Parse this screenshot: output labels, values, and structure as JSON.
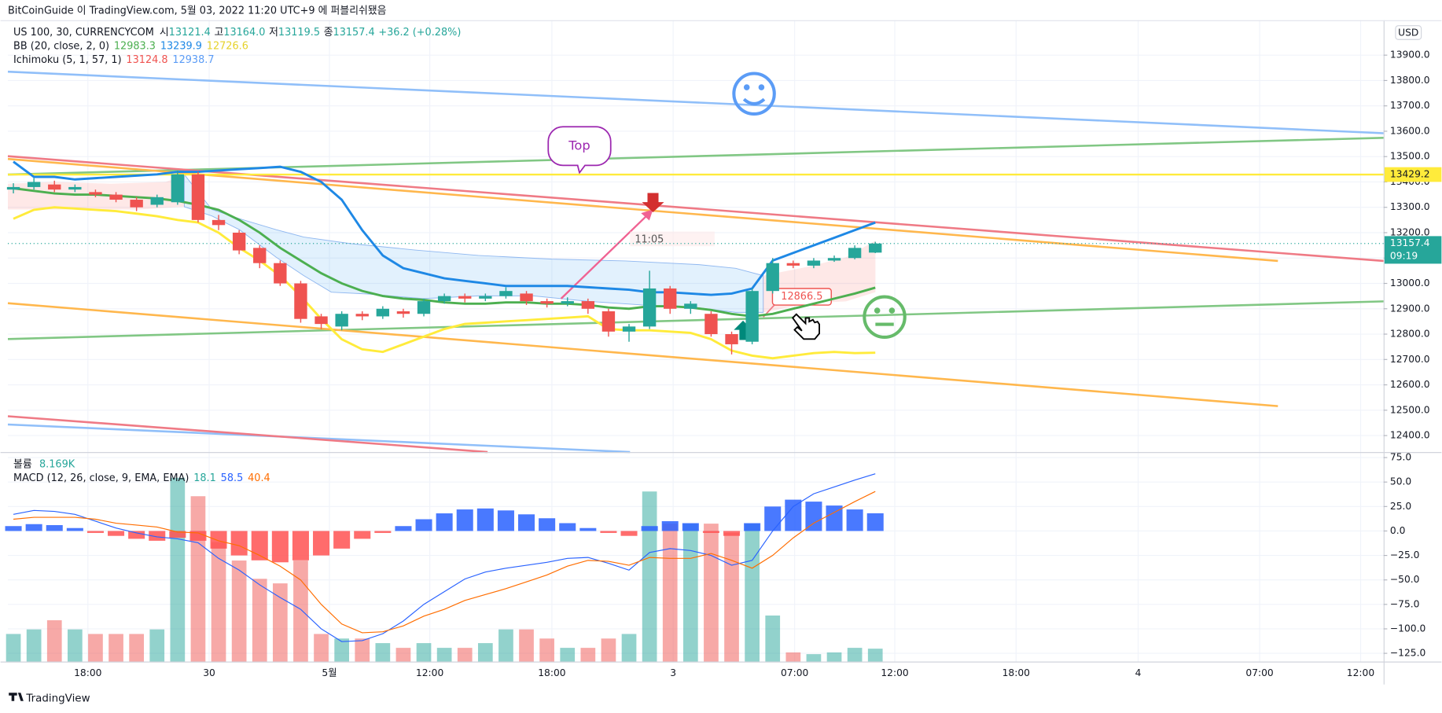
{
  "header": {
    "publisher": "BitCoinGuide 이 TradingView.com, 5월 03, 2022 11:20 UTC+9 에 퍼블리쉬됐음",
    "brand": "TradingView",
    "currency": "USD"
  },
  "chart_data": [
    {
      "type": "candlestick",
      "symbol": "US 100, 30, CURRENCYCOM",
      "ohlc_legend": [
        {
          "label": "시",
          "value": "13121.4"
        },
        {
          "label": "고",
          "value": "13164.0"
        },
        {
          "label": "저",
          "value": "13119.5"
        },
        {
          "label": "종",
          "value": "13157.4"
        }
      ],
      "change": "+36.2 (+0.28%)",
      "up_color": "#26a69a",
      "down_color": "#ef5350",
      "open": [
        13370,
        13380,
        13390,
        13370,
        13360,
        13350,
        13330,
        13310,
        13320,
        13430,
        13250,
        13200,
        13140,
        13080,
        13000,
        12870,
        12830,
        12880,
        12870,
        12890,
        12880,
        12930,
        12950,
        12940,
        12950,
        12960,
        12930,
        12920,
        12930,
        12890,
        12810,
        12830,
        12980,
        12900,
        12880,
        12800,
        12770,
        12970,
        13080,
        13070,
        13090,
        13100,
        13121.4
      ],
      "high": [
        13395,
        13415,
        13405,
        13390,
        13370,
        13360,
        13340,
        13350,
        13445,
        13440,
        13270,
        13210,
        13150,
        13090,
        13010,
        12880,
        12890,
        12890,
        12910,
        12900,
        12940,
        12960,
        12960,
        12960,
        12985,
        12970,
        12940,
        12945,
        12940,
        12900,
        12840,
        13050,
        12990,
        12930,
        12890,
        12810,
        12980,
        13100,
        13090,
        13100,
        13110,
        13150,
        13164
      ],
      "low": [
        13355,
        13370,
        13360,
        13360,
        13340,
        13320,
        13285,
        13300,
        13310,
        13240,
        13210,
        13115,
        13060,
        12990,
        12845,
        12820,
        12815,
        12855,
        12860,
        12865,
        12870,
        12920,
        12925,
        12930,
        12940,
        12915,
        12905,
        12910,
        12880,
        12790,
        12770,
        12820,
        12880,
        12880,
        12790,
        12720,
        12760,
        12960,
        13060,
        13060,
        13085,
        13095,
        13119.5
      ],
      "close": [
        13380,
        13400,
        13370,
        13380,
        13350,
        13330,
        13300,
        13340,
        13430,
        13250,
        13230,
        13130,
        13080,
        13000,
        12860,
        12840,
        12880,
        12870,
        12900,
        12880,
        12930,
        12950,
        12940,
        12950,
        12970,
        12930,
        12920,
        12930,
        12900,
        12810,
        12830,
        12980,
        12900,
        12920,
        12800,
        12760,
        12970,
        13080,
        13070,
        13090,
        13100,
        13140,
        13157.4
      ],
      "bollinger": {
        "title": "BB (20, close, 2, 0)",
        "series": [
          {
            "color": "#4caf50",
            "values": [
              13375,
              13365,
              13355,
              13350,
              13350,
              13345,
              13340,
              13335,
              13325,
              13310,
              13290,
              13250,
              13200,
              13140,
              13090,
              13040,
              13000,
              12970,
              12950,
              12940,
              12935,
              12925,
              12920,
              12920,
              12925,
              12925,
              12920,
              12920,
              12915,
              12905,
              12900,
              12910,
              12910,
              12905,
              12895,
              12880,
              12870,
              12880,
              12900,
              12920,
              12940,
              12960,
              12983.3
            ]
          },
          {
            "color": "#1e88e5",
            "values": [
              13480,
              13420,
              13420,
              13410,
              13415,
              13420,
              13425,
              13430,
              13440,
              13440,
              13445,
              13450,
              13455,
              13460,
              13440,
              13400,
              13330,
              13210,
              13110,
              13060,
              13040,
              13020,
              13010,
              13000,
              12990,
              12990,
              12990,
              12990,
              12985,
              12980,
              12975,
              12965,
              12965,
              12960,
              12955,
              12960,
              12980,
              13090,
              13120,
              13150,
              13180,
              13210,
              13239.9
            ]
          },
          {
            "color": "#ffeb3b",
            "values": [
              13255,
              13290,
              13300,
              13295,
              13290,
              13285,
              13275,
              13265,
              13250,
              13240,
              13200,
              13140,
              13090,
              13030,
              12950,
              12860,
              12780,
              12740,
              12730,
              12760,
              12790,
              12820,
              12840,
              12845,
              12850,
              12855,
              12860,
              12865,
              12870,
              12820,
              12815,
              12815,
              12810,
              12805,
              12780,
              12735,
              12715,
              12705,
              12715,
              12725,
              12730,
              12725,
              12726.6
            ]
          }
        ]
      },
      "ichimoku": {
        "title": "Ichimoku (5, 1, 57, 1)",
        "values": [
          13124.8,
          12938.7
        ],
        "colors": [
          "#ef5350",
          "#5b9cf6"
        ]
      },
      "price_lines": [
        {
          "value": 13429.2,
          "color": "#ffeb3b"
        },
        {
          "value": 13157.4,
          "countdown": "09:19",
          "color": "#26a69a"
        }
      ],
      "annotations": {
        "callout": "Top",
        "time_label": "11:05",
        "price_label": "12866.5"
      },
      "grid": true,
      "xlim": [
        -0.27,
        66.77
      ],
      "xticks": [
        {
          "value": 3.63,
          "label": "18:00"
        },
        {
          "value": 9.54,
          "label": "30"
        },
        {
          "value": 15.4,
          "label": "5월"
        },
        {
          "value": 20.29,
          "label": "12:00"
        },
        {
          "value": 26.24,
          "label": "18:00"
        },
        {
          "value": 32.15,
          "label": "3"
        },
        {
          "value": 38.07,
          "label": "07:00"
        },
        {
          "value": 42.95,
          "label": "12:00"
        },
        {
          "value": 48.86,
          "label": "18:00"
        },
        {
          "value": 54.81,
          "label": "4"
        },
        {
          "value": 60.73,
          "label": "07:00"
        },
        {
          "value": 65.65,
          "label": "12:00"
        }
      ],
      "ylim": [
        12335,
        14016
      ],
      "yticks": [
        {
          "value": 12400,
          "label": "12400.0"
        },
        {
          "value": 12500,
          "label": "12500.0"
        },
        {
          "value": 12600,
          "label": "12600.0"
        },
        {
          "value": 12700,
          "label": "12700.0"
        },
        {
          "value": 12800,
          "label": "12800.0"
        },
        {
          "value": 12900,
          "label": "12900.0"
        },
        {
          "value": 13000,
          "label": "13000.0"
        },
        {
          "value": 13100,
          "label": "13100.0"
        },
        {
          "value": 13200,
          "label": "13200.0"
        },
        {
          "value": 13300,
          "label": "13300.0"
        },
        {
          "value": 13400,
          "label": "13400.0"
        },
        {
          "value": 13500,
          "label": "13500.0"
        },
        {
          "value": 13600,
          "label": "13600.0"
        },
        {
          "value": 13700,
          "label": "13700.0"
        },
        {
          "value": 13800,
          "label": "13800.0"
        },
        {
          "value": 13900,
          "label": "13900.0"
        }
      ]
    },
    {
      "type": "macd",
      "title": "MACD (12, 26, close, 9, EMA, EMA)",
      "volume": {
        "name": "볼륨",
        "color": "#26a69a",
        "values": [
          17.5,
          20.4,
          26.2,
          20.4,
          17.5,
          17.5,
          17.5,
          20.4,
          116.6,
          104.9,
          75.8,
          64.1,
          52.5,
          49.6,
          64.1,
          17.5,
          14.6,
          14.6,
          11.7,
          8.7,
          11.7,
          8.7,
          8.7,
          11.7,
          20.4,
          20.4,
          14.6,
          8.7,
          8.7,
          14.6,
          17.5,
          107.9,
          87.5,
          87.5,
          87.5,
          81.6,
          87.5,
          29.2,
          5.8,
          4.7,
          5.8,
          8.7,
          8.169
        ],
        "value_labels": [
          null,
          null,
          null,
          null,
          null,
          null,
          null,
          null,
          null,
          null,
          null,
          null,
          null,
          null,
          null,
          null,
          null,
          null,
          null,
          null,
          null,
          null,
          null,
          null,
          null,
          null,
          null,
          null,
          null,
          null,
          null,
          null,
          null,
          null,
          null,
          null,
          null,
          null,
          null,
          null,
          null,
          null,
          "8.169K"
        ]
      },
      "histogram": {
        "color": "#26a69a",
        "up_color": "#2962ff",
        "down_color": "#ff5252",
        "values": [
          5,
          7,
          6,
          3,
          -2,
          -5,
          -8,
          -10,
          -7,
          -10,
          -18,
          -25,
          -30,
          -32,
          -30,
          -25,
          -18,
          -8,
          -2,
          5,
          12,
          18,
          22,
          23,
          21,
          17,
          13,
          8,
          3,
          -2,
          -5,
          5,
          10,
          8,
          -2,
          -5,
          8,
          25,
          32,
          30,
          26,
          22,
          18.1
        ]
      },
      "series": [
        {
          "color": "#2962ff",
          "values": [
            17,
            21,
            20,
            17,
            10,
            3,
            -2,
            -6,
            -8,
            -12,
            -28,
            -40,
            -55,
            -68,
            -80,
            -100,
            -113,
            -112,
            -105,
            -92,
            -75,
            -62,
            -49,
            -42,
            -38,
            -35,
            -32,
            -28,
            -27,
            -33,
            -40,
            -22,
            -18,
            -20,
            -25,
            -35,
            -30,
            0,
            25,
            38,
            45,
            52,
            58.5
          ]
        },
        {
          "color": "#ff6d00",
          "values": [
            12,
            14,
            14,
            14,
            12,
            8,
            6,
            4,
            -1,
            -2,
            -10,
            -15,
            -25,
            -36,
            -50,
            -75,
            -95,
            -104,
            -103,
            -97,
            -87,
            -80,
            -71,
            -65,
            -59,
            -52,
            -45,
            -36,
            -30,
            -31,
            -35,
            -27,
            -28,
            -28,
            -23,
            -30,
            -38,
            -25,
            -7,
            8,
            19,
            30,
            40.4
          ]
        }
      ],
      "xlim": [
        -0.27,
        66.77
      ],
      "ylim": [
        -133.4,
        79.7
      ],
      "yticks": [
        {
          "value": 75,
          "label": "75.0"
        },
        {
          "value": 50,
          "label": "50.0"
        },
        {
          "value": 25,
          "label": "25.0"
        },
        {
          "value": 0,
          "label": "0.0"
        },
        {
          "value": -25,
          "label": "−25.0"
        },
        {
          "value": -50,
          "label": "−50.0"
        },
        {
          "value": -75,
          "label": "−75.0"
        },
        {
          "value": -100,
          "label": "−100.0"
        },
        {
          "value": -125,
          "label": "−125.0"
        }
      ]
    }
  ]
}
